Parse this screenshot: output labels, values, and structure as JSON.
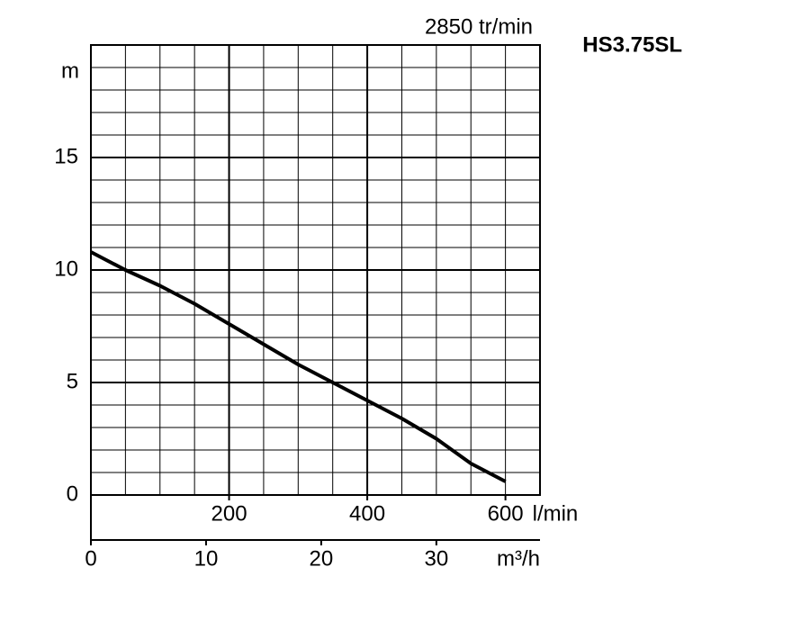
{
  "chart_data": {
    "type": "line",
    "title": "HS3.75SL",
    "subtitle": "2850 tr/min",
    "y_label": "m",
    "x_unit": "l/min",
    "x2_label": "m³/h",
    "x": [
      0,
      50,
      100,
      150,
      200,
      250,
      300,
      350,
      400,
      450,
      500,
      550,
      600
    ],
    "series": [
      {
        "name": "HS3.75SL",
        "color": "#000000",
        "values": [
          10.8,
          10.0,
          9.3,
          8.5,
          7.6,
          6.7,
          5.8,
          5.0,
          4.2,
          3.4,
          2.5,
          1.4,
          0.6
        ]
      }
    ],
    "xlim": [
      0,
      650
    ],
    "ylim": [
      0,
      20
    ],
    "xticks": [
      200,
      400,
      600
    ],
    "yticks": [
      0,
      5,
      10,
      15
    ],
    "x2lim": [
      0,
      39
    ],
    "x2ticks": [
      0,
      10,
      20,
      30
    ],
    "grid": true,
    "xgrid": [
      50,
      100,
      150,
      200,
      250,
      300,
      350,
      400,
      450,
      500,
      550,
      600
    ],
    "ygrid": [
      1,
      2,
      3,
      4,
      5,
      6,
      7,
      8,
      9,
      10,
      11,
      12,
      13,
      14,
      15,
      16,
      17,
      18,
      19
    ]
  }
}
